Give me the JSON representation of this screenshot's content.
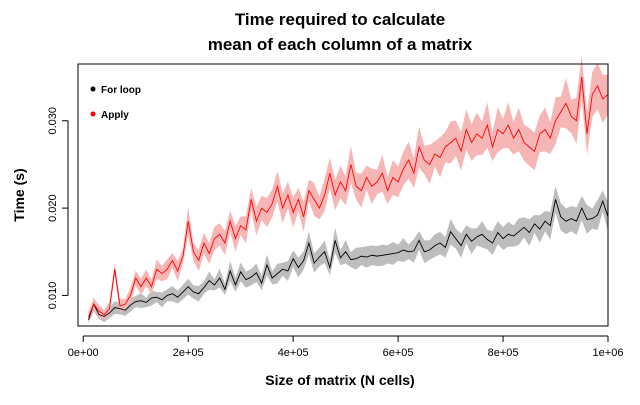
{
  "chart_data": {
    "type": "line",
    "title_lines": [
      "Time required to calculate",
      "mean of each column of a matrix"
    ],
    "xlabel": "Size of matrix (N cells)",
    "ylabel": "Time (s)",
    "xlim": [
      -10000,
      1000000
    ],
    "ylim": [
      0.0065,
      0.0365
    ],
    "x_ticks": [
      {
        "value": 0,
        "label": "0e+00"
      },
      {
        "value": 200000,
        "label": "2e+05"
      },
      {
        "value": 400000,
        "label": "4e+05"
      },
      {
        "value": 600000,
        "label": "6e+05"
      },
      {
        "value": 800000,
        "label": "8e+05"
      },
      {
        "value": 1000000,
        "label": "1e+06"
      }
    ],
    "y_ticks": [
      {
        "value": 0.01,
        "label": "0.010"
      },
      {
        "value": 0.02,
        "label": "0.020"
      },
      {
        "value": 0.03,
        "label": "0.030"
      }
    ],
    "legend_position": "top-left",
    "grid": false,
    "x_start": 10000,
    "x_step": 10000,
    "series": [
      {
        "name": "For loop",
        "line_color": "#000000",
        "band_color": "#bdbdbd",
        "values": [
          0.0072,
          0.009,
          0.0078,
          0.0076,
          0.008,
          0.0086,
          0.0085,
          0.0083,
          0.0089,
          0.0093,
          0.0094,
          0.0092,
          0.0097,
          0.0098,
          0.0095,
          0.01,
          0.0102,
          0.0098,
          0.0104,
          0.011,
          0.0104,
          0.0102,
          0.0109,
          0.0117,
          0.0112,
          0.012,
          0.0107,
          0.0128,
          0.0112,
          0.0127,
          0.0118,
          0.0121,
          0.0126,
          0.0114,
          0.0135,
          0.012,
          0.0125,
          0.013,
          0.0128,
          0.0142,
          0.0132,
          0.014,
          0.016,
          0.0137,
          0.0144,
          0.015,
          0.0132,
          0.0163,
          0.0143,
          0.015,
          0.0141,
          0.0142,
          0.0145,
          0.0144,
          0.0146,
          0.0145,
          0.0146,
          0.0147,
          0.0148,
          0.0149,
          0.0152,
          0.015,
          0.0151,
          0.0163,
          0.015,
          0.0152,
          0.0157,
          0.016,
          0.0155,
          0.0173,
          0.0165,
          0.0157,
          0.017,
          0.0162,
          0.0167,
          0.017,
          0.0164,
          0.016,
          0.0172,
          0.0165,
          0.017,
          0.0168,
          0.0173,
          0.0178,
          0.0172,
          0.0182,
          0.0176,
          0.0185,
          0.018,
          0.021,
          0.019,
          0.0185,
          0.0188,
          0.0185,
          0.02,
          0.0187,
          0.0188,
          0.0192,
          0.0208,
          0.019
        ]
      },
      {
        "name": "Apply",
        "line_color": "#ff0000",
        "band_color": "#f7b6b6",
        "values": [
          0.0075,
          0.009,
          0.0082,
          0.0078,
          0.0085,
          0.013,
          0.0088,
          0.009,
          0.01,
          0.012,
          0.011,
          0.012,
          0.011,
          0.013,
          0.0125,
          0.013,
          0.014,
          0.0128,
          0.0145,
          0.0185,
          0.015,
          0.014,
          0.016,
          0.0148,
          0.0165,
          0.017,
          0.016,
          0.0185,
          0.0165,
          0.018,
          0.0175,
          0.021,
          0.0185,
          0.02,
          0.0195,
          0.0205,
          0.0225,
          0.02,
          0.0215,
          0.0195,
          0.021,
          0.019,
          0.022,
          0.021,
          0.02,
          0.0215,
          0.024,
          0.0215,
          0.023,
          0.022,
          0.025,
          0.0225,
          0.022,
          0.0235,
          0.0225,
          0.023,
          0.024,
          0.022,
          0.0235,
          0.023,
          0.0245,
          0.0255,
          0.024,
          0.027,
          0.0255,
          0.025,
          0.0262,
          0.0258,
          0.027,
          0.0275,
          0.028,
          0.0265,
          0.029,
          0.0275,
          0.0285,
          0.028,
          0.0295,
          0.027,
          0.029,
          0.0285,
          0.0295,
          0.028,
          0.029,
          0.0275,
          0.027,
          0.0265,
          0.0285,
          0.029,
          0.028,
          0.03,
          0.031,
          0.032,
          0.0305,
          0.03,
          0.035,
          0.0285,
          0.033,
          0.034,
          0.0325,
          0.033
        ]
      }
    ]
  }
}
